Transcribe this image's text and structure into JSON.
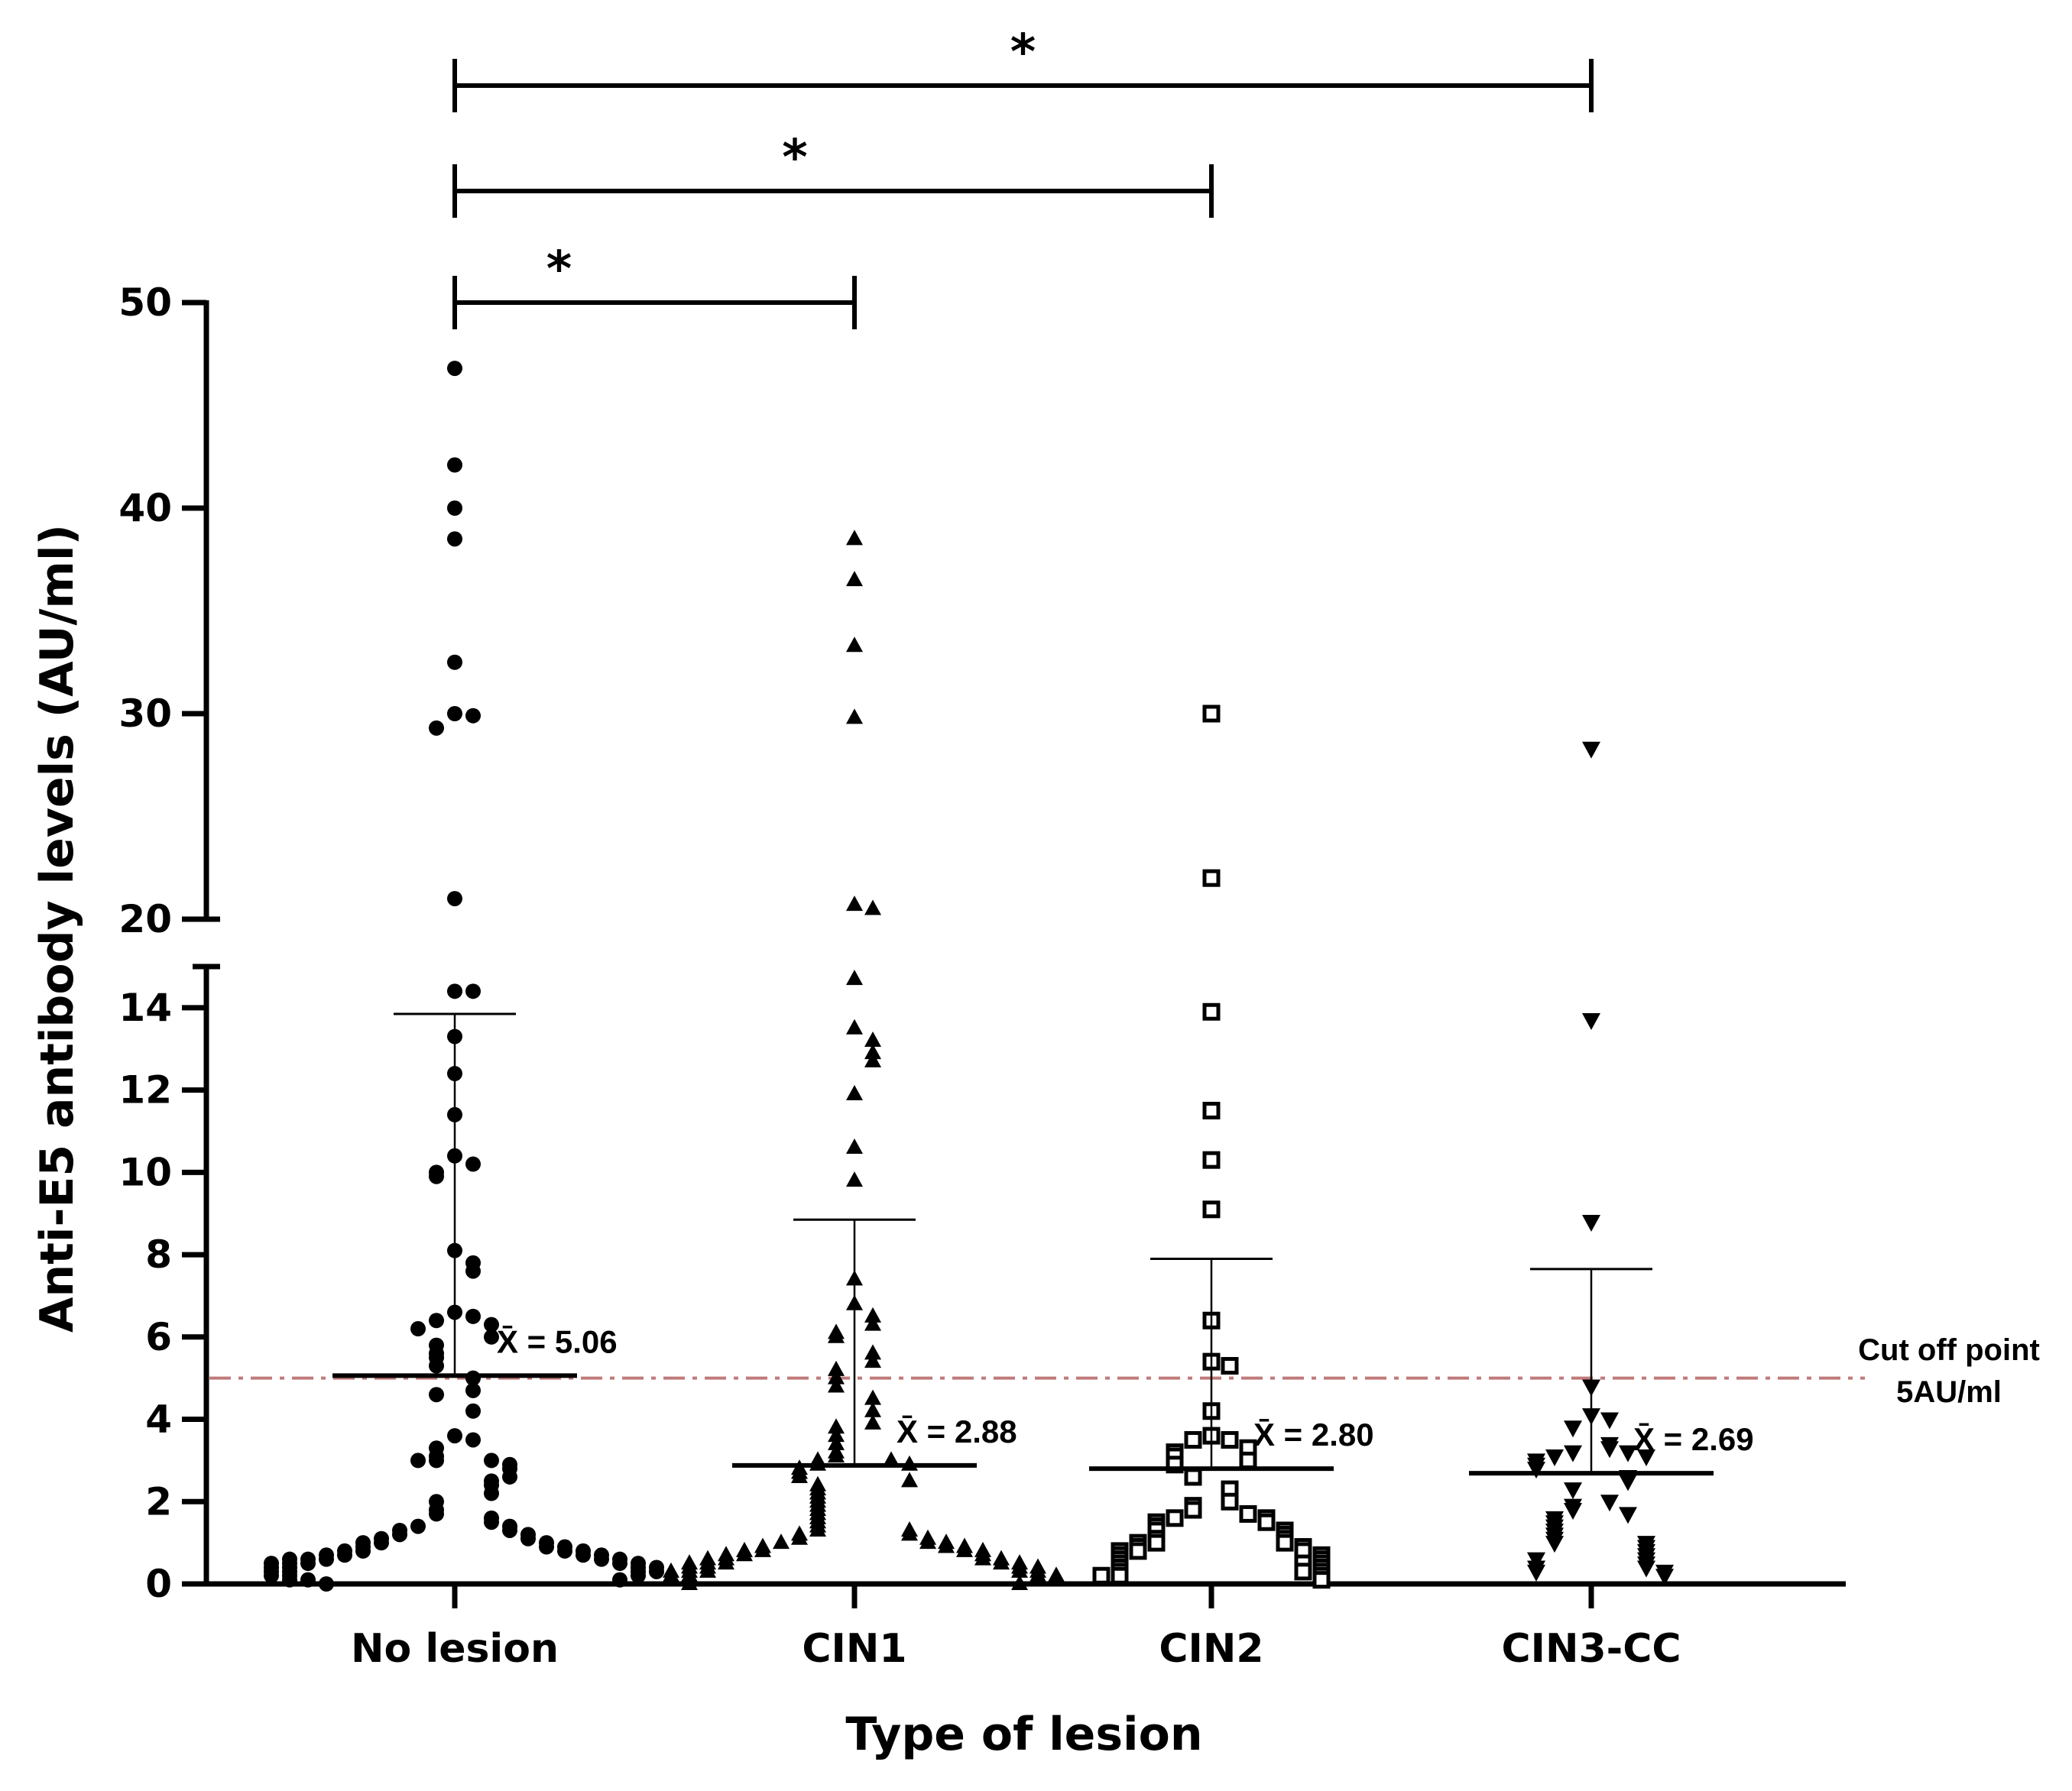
{
  "chart_data": {
    "type": "scatter",
    "title": "",
    "xlabel": "Type of lesion",
    "ylabel": "Anti-E5 antibody levels (AU/ml)",
    "categories": [
      "No lesion",
      "CIN1",
      "CIN2",
      "CIN3-CC"
    ],
    "y_axis": {
      "segments": [
        {
          "range": [
            0,
            15
          ],
          "ticks": [
            0,
            2,
            4,
            6,
            8,
            10,
            12,
            14
          ]
        },
        {
          "range": [
            20,
            50
          ],
          "ticks": [
            20,
            30,
            40,
            50
          ]
        }
      ],
      "tick_labels": [
        "0",
        "2",
        "4",
        "6",
        "8",
        "10",
        "12",
        "14",
        "20",
        "30",
        "40",
        "50"
      ],
      "break_between": [
        15,
        20
      ]
    },
    "series": [
      {
        "name": "No lesion",
        "marker": "circle",
        "mean": 5.06,
        "mean_label": "X̄ = 5.06",
        "sd_upper": 13.85,
        "values": [
          46.8,
          42.1,
          40.0,
          38.5,
          32.5,
          30.0,
          29.9,
          29.3,
          21.0,
          14.4,
          14.4,
          13.3,
          12.4,
          11.4,
          10.4,
          10.2,
          10.0,
          9.9,
          8.1,
          7.8,
          7.6,
          6.6,
          6.5,
          6.4,
          6.3,
          6.2,
          6.0,
          5.8,
          5.6,
          5.5,
          5.3,
          5.0,
          4.7,
          4.6,
          4.2,
          3.6,
          3.5,
          3.3,
          3.1,
          3.0,
          3.0,
          3.0,
          2.9,
          2.8,
          2.6,
          2.5,
          2.4,
          2.2,
          2.0,
          1.8,
          1.7,
          1.6,
          1.5,
          1.4,
          1.4,
          1.3,
          1.3,
          1.2,
          1.2,
          1.1,
          1.1,
          1.0,
          1.0,
          1.0,
          0.9,
          0.9,
          0.9,
          0.8,
          0.8,
          0.8,
          0.8,
          0.7,
          0.7,
          0.7,
          0.7,
          0.6,
          0.6,
          0.6,
          0.6,
          0.6,
          0.5,
          0.5,
          0.5,
          0.5,
          0.5,
          0.4,
          0.4,
          0.4,
          0.4,
          0.3,
          0.3,
          0.3,
          0.3,
          0.2,
          0.2,
          0.2,
          0.1,
          0.1,
          0.1,
          0.0
        ]
      },
      {
        "name": "CIN1",
        "marker": "triangle-up",
        "mean": 2.88,
        "mean_label": "X̄ = 2.88",
        "sd_upper": 8.85,
        "values": [
          38.5,
          36.5,
          33.3,
          29.8,
          20.7,
          20.5,
          14.7,
          13.5,
          13.2,
          12.9,
          12.7,
          11.9,
          10.6,
          9.8,
          7.4,
          6.8,
          6.5,
          6.3,
          6.1,
          6.0,
          5.6,
          5.4,
          5.2,
          5.0,
          4.8,
          4.5,
          4.2,
          3.9,
          3.8,
          3.6,
          3.4,
          3.2,
          3.1,
          3.0,
          3.0,
          2.9,
          2.9,
          2.8,
          2.7,
          2.6,
          2.5,
          2.4,
          2.3,
          2.2,
          2.1,
          2.0,
          1.9,
          1.8,
          1.7,
          1.6,
          1.5,
          1.4,
          1.3,
          1.3,
          1.2,
          1.2,
          1.1,
          1.1,
          1.0,
          1.0,
          1.0,
          0.9,
          0.9,
          0.9,
          0.8,
          0.8,
          0.8,
          0.8,
          0.7,
          0.7,
          0.7,
          0.6,
          0.6,
          0.6,
          0.6,
          0.5,
          0.5,
          0.5,
          0.5,
          0.5,
          0.4,
          0.4,
          0.4,
          0.4,
          0.3,
          0.3,
          0.3,
          0.3,
          0.3,
          0.2,
          0.2,
          0.2,
          0.2,
          0.1,
          0.1,
          0.1,
          0.1,
          0.0,
          0.0
        ]
      },
      {
        "name": "CIN2",
        "marker": "square-open",
        "mean": 2.8,
        "mean_label": "X̄ = 2.80",
        "sd_upper": 7.9,
        "values": [
          30.0,
          22.0,
          13.9,
          11.5,
          10.3,
          9.1,
          6.4,
          5.4,
          5.3,
          4.2,
          3.6,
          3.5,
          3.5,
          3.3,
          3.2,
          3.1,
          3.0,
          2.9,
          2.6,
          2.3,
          2.0,
          1.9,
          1.8,
          1.7,
          1.6,
          1.6,
          1.5,
          1.5,
          1.4,
          1.3,
          1.3,
          1.2,
          1.1,
          1.1,
          1.0,
          1.0,
          1.0,
          0.9,
          0.9,
          0.8,
          0.8,
          0.8,
          0.7,
          0.7,
          0.6,
          0.6,
          0.5,
          0.5,
          0.5,
          0.4,
          0.4,
          0.3,
          0.3,
          0.3,
          0.2,
          0.2,
          0.2,
          0.1
        ]
      },
      {
        "name": "CIN3-CC",
        "marker": "triangle-down",
        "mean": 2.69,
        "mean_label": "X̄ = 2.69",
        "sd_upper": 7.65,
        "values": [
          28.3,
          13.7,
          8.8,
          4.8,
          4.1,
          4.0,
          3.8,
          3.4,
          3.3,
          3.2,
          3.2,
          3.1,
          3.1,
          3.0,
          2.9,
          2.8,
          2.6,
          2.5,
          2.3,
          2.0,
          1.9,
          1.8,
          1.7,
          1.6,
          1.5,
          1.4,
          1.3,
          1.2,
          1.1,
          1.0,
          1.0,
          0.9,
          0.8,
          0.7,
          0.6,
          0.6,
          0.5,
          0.4,
          0.4,
          0.3,
          0.3,
          0.2
        ]
      }
    ],
    "cutoff": {
      "value": 5,
      "label_line1": "Cut off point",
      "label_line2": "5AU/ml",
      "color": "#c07a7a"
    },
    "significance": [
      {
        "from": "No lesion",
        "to": "CIN1",
        "label": "*"
      },
      {
        "from": "No lesion",
        "to": "CIN2",
        "label": "*"
      },
      {
        "from": "No lesion",
        "to": "CIN3-CC",
        "label": "*"
      }
    ]
  }
}
